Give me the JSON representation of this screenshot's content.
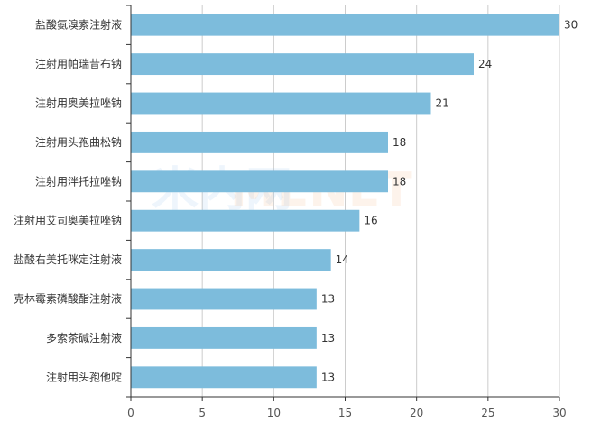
{
  "chart_data": {
    "type": "bar",
    "orientation": "horizontal",
    "categories": [
      "盐酸氨溴索注射液",
      "注射用帕瑞昔布钠",
      "注射用奥美拉唑钠",
      "注射用头孢曲松钠",
      "注射用泮托拉唑钠",
      "注射用艾司奥美拉唑钠",
      "盐酸右美托咪定注射液",
      "克林霉素磷酸酯注射液",
      "多索茶碱注射液",
      "注射用头孢他啶"
    ],
    "values": [
      30,
      24,
      21,
      18,
      18,
      16,
      14,
      13,
      13,
      13
    ],
    "xlim": [
      0,
      30
    ],
    "xticks": [
      0,
      5,
      10,
      15,
      20,
      25,
      30
    ],
    "grid": true,
    "bar_color": "#7dbcdc",
    "grid_color": "#cccccc",
    "axis_color": "#333333"
  },
  "watermark": {
    "text_cn": "米内网",
    "text_en": "MENET"
  }
}
